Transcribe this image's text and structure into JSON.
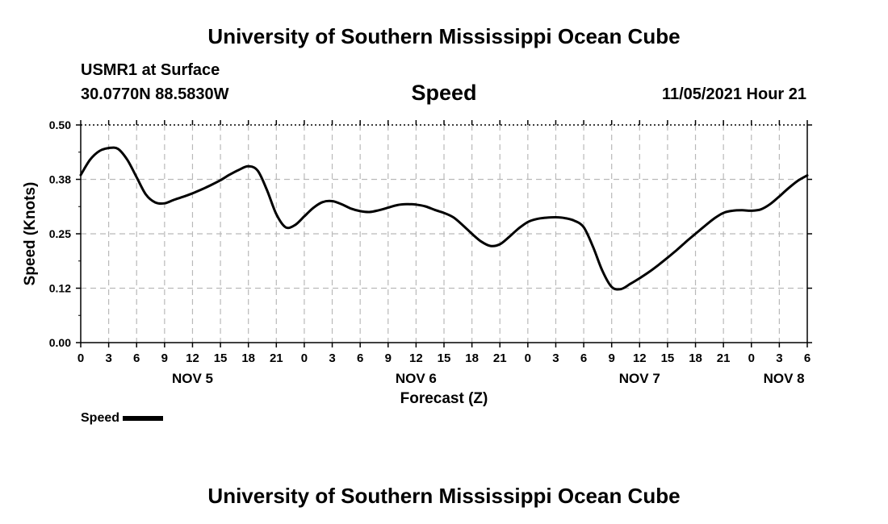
{
  "header": {
    "title": "University of Southern Mississippi Ocean Cube",
    "station": "USMR1 at Surface",
    "coords": "30.0770N  88.5830W",
    "parameter": "Speed",
    "datetime": "11/05/2021 Hour 21"
  },
  "footer": {
    "title": "University of Southern Mississippi Ocean Cube"
  },
  "legend": {
    "label": "Speed",
    "color": "#000000"
  },
  "chart_data": {
    "type": "line",
    "title": "Speed",
    "xlabel": "Forecast (Z)",
    "ylabel": "Speed (Knots)",
    "xlim": [
      0,
      78
    ],
    "ylim": [
      0,
      0.5
    ],
    "grid": true,
    "y_ticks": [
      0.0,
      0.125,
      0.25,
      0.375,
      0.5
    ],
    "y_tick_labels": [
      "0.00",
      "0.12",
      "0.25",
      "0.38",
      "0.50"
    ],
    "x_ticks": [
      0,
      3,
      6,
      9,
      12,
      15,
      18,
      21,
      24,
      27,
      30,
      33,
      36,
      39,
      42,
      45,
      48,
      51,
      54,
      57,
      60,
      63,
      66,
      69,
      72,
      75,
      78
    ],
    "x_tick_labels": [
      "0",
      "3",
      "6",
      "9",
      "12",
      "15",
      "18",
      "21",
      "0",
      "3",
      "6",
      "9",
      "12",
      "15",
      "18",
      "21",
      "0",
      "3",
      "6",
      "9",
      "12",
      "15",
      "18",
      "21",
      "0",
      "3",
      "6"
    ],
    "day_labels": [
      {
        "label": "NOV 5",
        "x": 12
      },
      {
        "label": "NOV 6",
        "x": 36
      },
      {
        "label": "NOV 7",
        "x": 60
      },
      {
        "label": "NOV 8",
        "x": 75.5
      }
    ],
    "series": [
      {
        "name": "Speed",
        "color": "#000000",
        "x": [
          0,
          1,
          2,
          3,
          4,
          5,
          6,
          7,
          8,
          9,
          10,
          11,
          12,
          13,
          14,
          15,
          16,
          17,
          18,
          19,
          20,
          21,
          22,
          23,
          24,
          25,
          26,
          27,
          28,
          29,
          30,
          31,
          32,
          33,
          34,
          35,
          36,
          37,
          38,
          39,
          40,
          41,
          42,
          43,
          44,
          45,
          46,
          47,
          48,
          49,
          50,
          51,
          52,
          53,
          54,
          55,
          56,
          57,
          58,
          59,
          60,
          61,
          62,
          63,
          64,
          65,
          66,
          67,
          68,
          69,
          70,
          71,
          72,
          73,
          74,
          75,
          76,
          77,
          78
        ],
        "values": [
          0.385,
          0.42,
          0.44,
          0.447,
          0.445,
          0.42,
          0.38,
          0.34,
          0.322,
          0.32,
          0.328,
          0.335,
          0.343,
          0.352,
          0.362,
          0.373,
          0.386,
          0.397,
          0.405,
          0.395,
          0.35,
          0.295,
          0.265,
          0.27,
          0.29,
          0.31,
          0.323,
          0.325,
          0.318,
          0.308,
          0.302,
          0.3,
          0.304,
          0.31,
          0.316,
          0.318,
          0.317,
          0.313,
          0.305,
          0.298,
          0.288,
          0.27,
          0.25,
          0.232,
          0.222,
          0.226,
          0.243,
          0.262,
          0.277,
          0.284,
          0.287,
          0.288,
          0.286,
          0.28,
          0.265,
          0.22,
          0.165,
          0.128,
          0.123,
          0.135,
          0.148,
          0.162,
          0.178,
          0.195,
          0.213,
          0.232,
          0.25,
          0.268,
          0.285,
          0.298,
          0.303,
          0.304,
          0.303,
          0.306,
          0.318,
          0.336,
          0.355,
          0.372,
          0.384
        ]
      }
    ]
  }
}
